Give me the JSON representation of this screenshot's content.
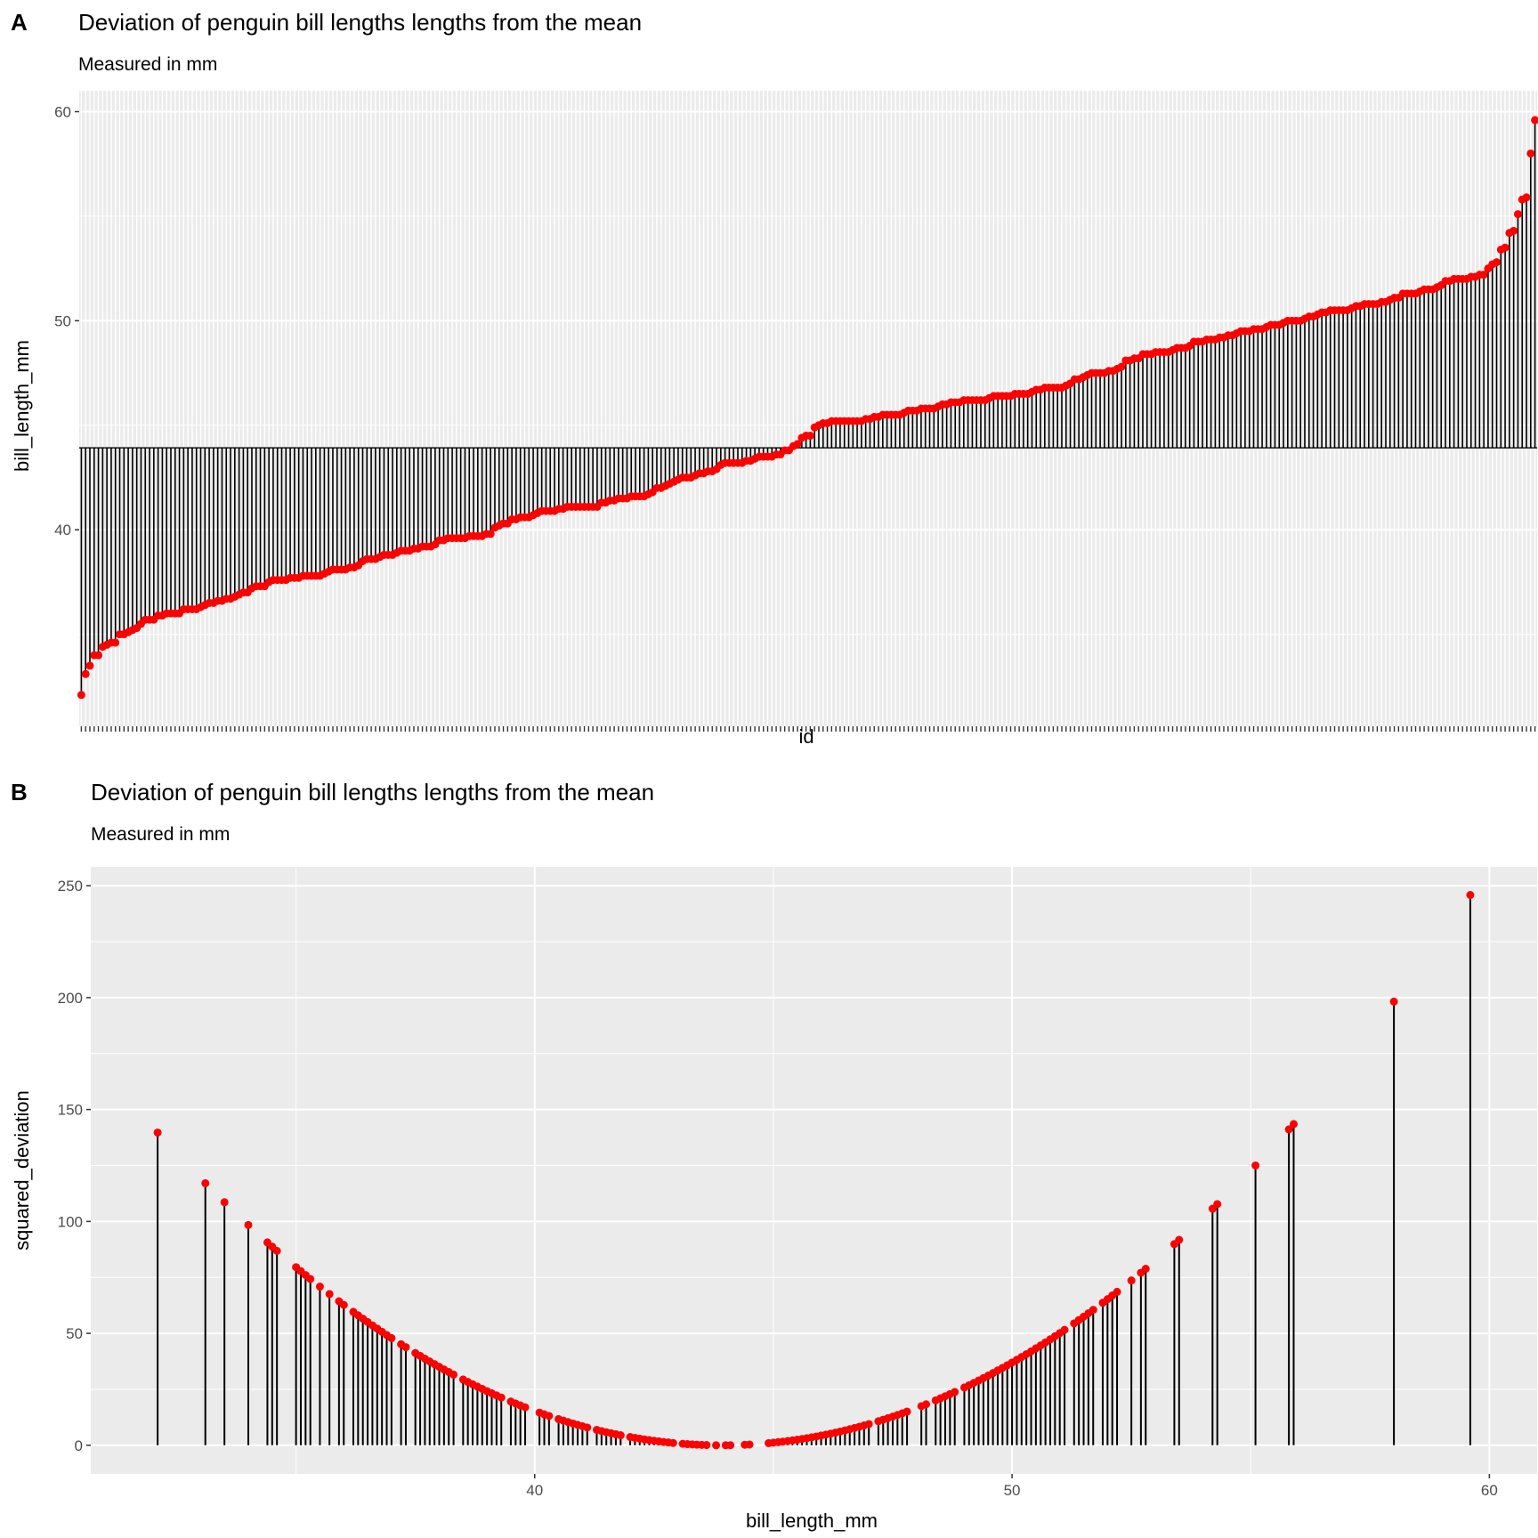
{
  "colors": {
    "panel_bg": "#ebebeb",
    "grid": "#ffffff",
    "stem": "#000000",
    "point": "#ff0000"
  },
  "chart_data": [
    {
      "panel_tag": "A",
      "type": "lollipop",
      "title": "Deviation of penguin bill lengths lengths from the mean",
      "subtitle": "Measured in mm",
      "xlabel": "id",
      "ylabel": "bill_length_mm",
      "ylim": [
        30.6,
        61.0
      ],
      "yticks": [
        "40",
        "50",
        "60"
      ],
      "ytick_values": [
        40,
        50,
        60
      ],
      "baseline_mean": 43.92,
      "grid": true,
      "values_sorted": [
        32.1,
        33.1,
        33.5,
        34.0,
        34.0,
        34.4,
        34.5,
        34.6,
        34.6,
        35.0,
        35.0,
        35.1,
        35.2,
        35.3,
        35.5,
        35.7,
        35.7,
        35.7,
        35.9,
        35.9,
        36.0,
        36.0,
        36.0,
        36.0,
        36.2,
        36.2,
        36.2,
        36.2,
        36.3,
        36.4,
        36.5,
        36.5,
        36.6,
        36.6,
        36.7,
        36.7,
        36.8,
        36.9,
        37.0,
        37.0,
        37.2,
        37.3,
        37.3,
        37.3,
        37.5,
        37.6,
        37.6,
        37.6,
        37.6,
        37.7,
        37.7,
        37.7,
        37.8,
        37.8,
        37.8,
        37.8,
        37.8,
        37.9,
        38.0,
        38.1,
        38.1,
        38.1,
        38.1,
        38.2,
        38.2,
        38.3,
        38.5,
        38.6,
        38.6,
        38.6,
        38.7,
        38.8,
        38.8,
        38.8,
        38.9,
        39.0,
        39.0,
        39.0,
        39.1,
        39.1,
        39.2,
        39.2,
        39.2,
        39.3,
        39.5,
        39.5,
        39.6,
        39.6,
        39.6,
        39.6,
        39.6,
        39.7,
        39.7,
        39.7,
        39.7,
        39.8,
        39.8,
        40.1,
        40.2,
        40.3,
        40.3,
        40.5,
        40.5,
        40.6,
        40.6,
        40.6,
        40.7,
        40.8,
        40.9,
        40.9,
        40.9,
        40.9,
        41.0,
        41.0,
        41.1,
        41.1,
        41.1,
        41.1,
        41.1,
        41.1,
        41.1,
        41.1,
        41.3,
        41.3,
        41.4,
        41.4,
        41.5,
        41.5,
        41.5,
        41.6,
        41.6,
        41.6,
        41.6,
        41.7,
        41.8,
        42.0,
        42.0,
        42.1,
        42.2,
        42.3,
        42.4,
        42.5,
        42.5,
        42.5,
        42.6,
        42.7,
        42.7,
        42.8,
        42.8,
        42.9,
        43.1,
        43.2,
        43.2,
        43.2,
        43.2,
        43.2,
        43.3,
        43.3,
        43.4,
        43.5,
        43.5,
        43.5,
        43.5,
        43.6,
        43.6,
        43.8,
        43.8,
        44.0,
        44.1,
        44.4,
        44.5,
        44.5,
        44.9,
        45.0,
        45.1,
        45.1,
        45.2,
        45.2,
        45.2,
        45.2,
        45.2,
        45.2,
        45.2,
        45.2,
        45.3,
        45.3,
        45.4,
        45.4,
        45.5,
        45.5,
        45.5,
        45.5,
        45.5,
        45.6,
        45.7,
        45.7,
        45.7,
        45.8,
        45.8,
        45.8,
        45.8,
        45.9,
        46.0,
        46.0,
        46.1,
        46.1,
        46.1,
        46.2,
        46.2,
        46.2,
        46.2,
        46.2,
        46.2,
        46.3,
        46.4,
        46.4,
        46.4,
        46.4,
        46.4,
        46.5,
        46.5,
        46.5,
        46.5,
        46.6,
        46.7,
        46.7,
        46.8,
        46.8,
        46.8,
        46.8,
        46.8,
        46.9,
        47.0,
        47.2,
        47.2,
        47.3,
        47.4,
        47.5,
        47.5,
        47.5,
        47.5,
        47.6,
        47.6,
        47.7,
        47.8,
        48.1,
        48.1,
        48.2,
        48.2,
        48.4,
        48.4,
        48.4,
        48.5,
        48.5,
        48.5,
        48.5,
        48.6,
        48.7,
        48.7,
        48.7,
        48.8,
        49.0,
        49.0,
        49.0,
        49.1,
        49.1,
        49.1,
        49.2,
        49.2,
        49.3,
        49.3,
        49.4,
        49.5,
        49.5,
        49.5,
        49.6,
        49.6,
        49.6,
        49.7,
        49.8,
        49.8,
        49.8,
        49.9,
        50.0,
        50.0,
        50.0,
        50.0,
        50.1,
        50.2,
        50.2,
        50.3,
        50.4,
        50.4,
        50.5,
        50.5,
        50.5,
        50.5,
        50.5,
        50.6,
        50.7,
        50.7,
        50.8,
        50.8,
        50.8,
        50.8,
        50.9,
        50.9,
        51.0,
        51.1,
        51.1,
        51.3,
        51.3,
        51.3,
        51.3,
        51.4,
        51.5,
        51.5,
        51.5,
        51.6,
        51.7,
        51.9,
        51.9,
        52.0,
        52.0,
        52.0,
        52.0,
        52.1,
        52.1,
        52.2,
        52.2,
        52.5,
        52.7,
        52.8,
        53.4,
        53.5,
        54.2,
        54.3,
        55.1,
        55.8,
        55.9,
        58.0,
        59.6
      ]
    },
    {
      "panel_tag": "B",
      "type": "lollipop",
      "title": "Deviation of penguin bill lengths lengths from the mean",
      "subtitle": "Measured in mm",
      "xlabel": "bill_length_mm",
      "ylabel": "squared_deviation",
      "xlim": [
        30.7,
        61.0
      ],
      "ylim": [
        -12.8,
        258.4
      ],
      "xticks": [
        "40",
        "50",
        "60"
      ],
      "xtick_values": [
        40,
        50,
        60
      ],
      "yticks": [
        "0",
        "50",
        "100",
        "150",
        "200",
        "250"
      ],
      "ytick_values": [
        0,
        50,
        100,
        150,
        200,
        250
      ],
      "mean": 43.92,
      "y_is": "squared deviation of bill_length_mm from the mean (same penguins as A)",
      "grid": true
    }
  ]
}
